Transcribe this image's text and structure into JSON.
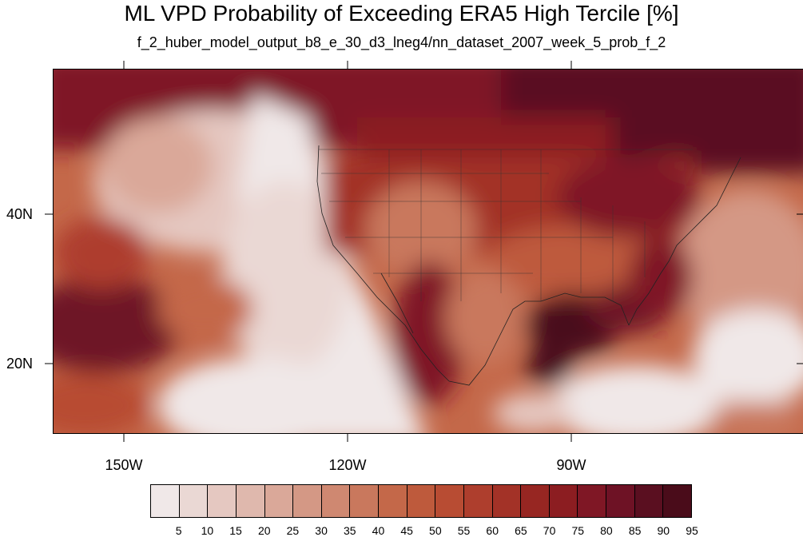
{
  "title": "ML VPD Probability of Exceeding ERA5 High Tercile [%]",
  "subtitle": "f_2_huber_model_output_b8_e_30_d3_lneg4/nn_dataset_2007_week_5_prob_f_2",
  "map": {
    "projection": "cylindrical-equidistant",
    "lon_range": [
      -160,
      -60
    ],
    "lat_range": [
      10,
      59
    ],
    "lat_labels": [
      "40N",
      "20N"
    ],
    "lon_labels": [
      "150W",
      "120W",
      "90W"
    ],
    "features": [
      "coastlines",
      "us-state-borders",
      "country-borders"
    ]
  },
  "colorbar": {
    "labels": [
      "5",
      "10",
      "15",
      "20",
      "25",
      "30",
      "35",
      "40",
      "45",
      "50",
      "55",
      "60",
      "65",
      "70",
      "75",
      "80",
      "85",
      "90",
      "95"
    ],
    "colors": [
      "#f0e8e8",
      "#ead8d4",
      "#e5c8c1",
      "#dfb8ad",
      "#daa899",
      "#d49885",
      "#cf8871",
      "#c9785d",
      "#c46849",
      "#be5a3c",
      "#b84c33",
      "#ae3e2d",
      "#a33227",
      "#972622",
      "#8c1d21",
      "#7f1725",
      "#6e1225",
      "#5a0f20",
      "#4a0c1a"
    ]
  }
}
